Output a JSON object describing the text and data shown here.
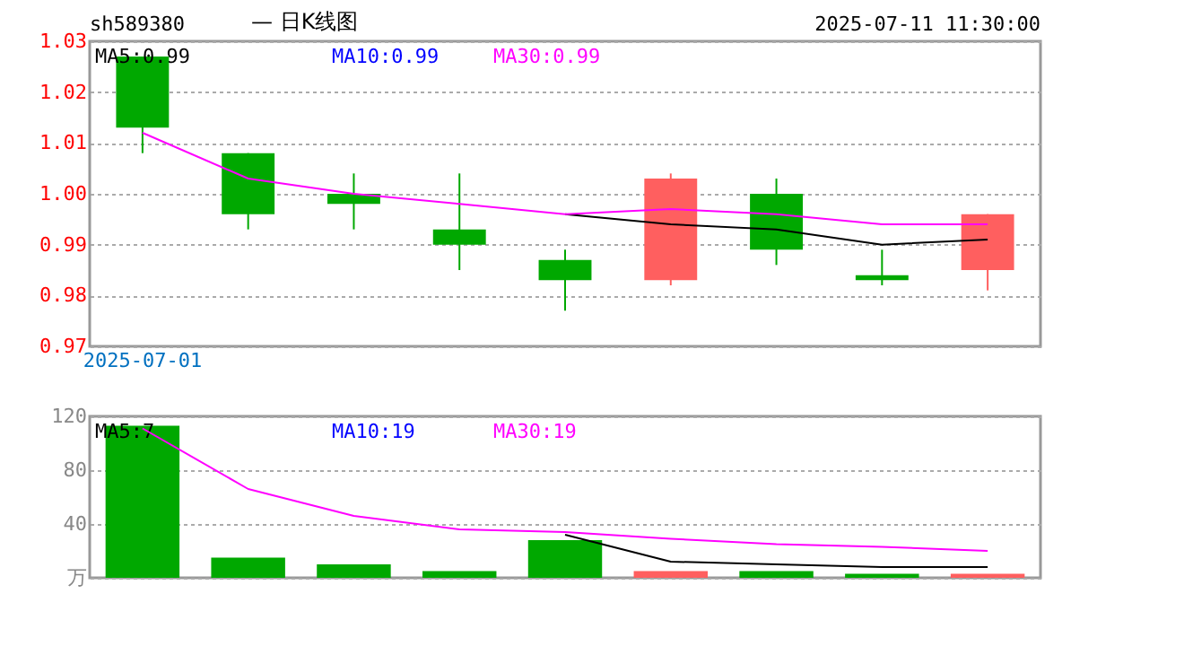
{
  "chart_data": [
    {
      "type": "candlestick",
      "title": "sh589380",
      "annotations": [
        "— 日K线图",
        "2025-07-11 11:30:00"
      ],
      "categories": [
        "2025-07-01",
        null,
        null,
        null,
        null,
        null,
        null,
        null,
        null
      ],
      "ohlc": [
        [
          1.027,
          1.027,
          1.008,
          1.013
        ],
        [
          1.008,
          1.008,
          0.993,
          0.996
        ],
        [
          1.0,
          1.004,
          0.993,
          0.998
        ],
        [
          0.993,
          1.004,
          0.985,
          0.99
        ],
        [
          0.987,
          0.989,
          0.977,
          0.983
        ],
        [
          0.983,
          1.004,
          0.982,
          1.003
        ],
        [
          1.0,
          1.003,
          0.986,
          0.989
        ],
        [
          0.984,
          0.989,
          0.982,
          0.983
        ],
        [
          0.985,
          0.996,
          0.981,
          0.996
        ]
      ],
      "colors": [
        "#00a800",
        "#00a800",
        "#00a800",
        "#00a800",
        "#00a800",
        "#ff5f5f",
        "#00a800",
        "#00a800",
        "#ff5f5f"
      ],
      "series": [
        {
          "name": "MA5:0.99",
          "type": "line",
          "color": "#000000",
          "values": [
            null,
            null,
            null,
            null,
            0.996,
            0.994,
            0.993,
            0.99,
            0.991
          ]
        },
        {
          "name": "MA10:0.99",
          "type": "line",
          "color": "#0000ff",
          "values": [
            null,
            null,
            null,
            null,
            null,
            null,
            null,
            null,
            null
          ]
        },
        {
          "name": "MA30:0.99",
          "type": "line",
          "color": "#ff00ff",
          "values": [
            1.012,
            1.003,
            1.0,
            0.998,
            0.996,
            0.997,
            0.996,
            0.994,
            0.994
          ]
        }
      ],
      "ylim": [
        0.97,
        1.03
      ],
      "yticks": [
        0.97,
        0.98,
        0.99,
        {
          "value": 1,
          "label": "1.00"
        },
        1.01,
        1.02,
        1.03
      ],
      "grid": "y"
    },
    {
      "type": "bar",
      "categories": [
        null,
        null,
        null,
        null,
        null,
        null,
        null,
        null,
        null
      ],
      "values": [
        113,
        15,
        10,
        5,
        28,
        5,
        5,
        3,
        3
      ],
      "colors": [
        "#00a800",
        "#00a800",
        "#00a800",
        "#00a800",
        "#00a800",
        "#ff5f5f",
        "#00a800",
        "#00a800",
        "#ff5f5f"
      ],
      "series": [
        {
          "name": "MA5:7",
          "type": "line",
          "color": "#000000",
          "values": [
            null,
            null,
            null,
            null,
            32,
            12,
            10,
            8,
            8
          ]
        },
        {
          "name": "MA10:19",
          "type": "line",
          "color": "#0000ff",
          "values": [
            null,
            null,
            null,
            null,
            null,
            null,
            null,
            null,
            null
          ]
        },
        {
          "name": "MA30:19",
          "type": "line",
          "color": "#ff00ff",
          "values": [
            111,
            66,
            46,
            36,
            34,
            29,
            25,
            23,
            20
          ]
        }
      ],
      "ylim": [
        0,
        120
      ],
      "yticks": [
        {
          "value": 0,
          "label": "万"
        },
        40,
        80,
        120
      ],
      "grid": "y",
      "tick_labels": "y"
    }
  ]
}
